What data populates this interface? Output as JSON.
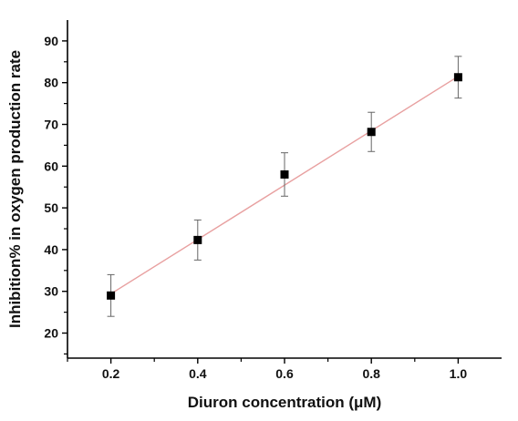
{
  "chart_data": {
    "type": "scatter",
    "title": "",
    "xlabel": "Diuron concentration (μM)",
    "ylabel": "Inhibition% in oxygen production rate",
    "xlim": [
      0.1,
      1.1
    ],
    "ylim": [
      14,
      95
    ],
    "x_ticks": [
      "0.2",
      "0.4",
      "0.6",
      "0.8",
      "1.0"
    ],
    "y_ticks": [
      "20",
      "30",
      "40",
      "50",
      "60",
      "70",
      "80",
      "90"
    ],
    "grid": false,
    "legend": "none",
    "series": [
      {
        "x": [
          0.2,
          0.4,
          0.6,
          0.8,
          1.0
        ],
        "y": [
          29.0,
          42.3,
          58.0,
          68.2,
          81.3
        ],
        "error": [
          5.0,
          4.8,
          5.2,
          4.7,
          5.0
        ],
        "color": "#000000",
        "marker": "square"
      }
    ],
    "fit_line": {
      "x": [
        0.2,
        1.0
      ],
      "y": [
        29.4,
        81.5
      ],
      "color": "#e8a0a0"
    }
  }
}
